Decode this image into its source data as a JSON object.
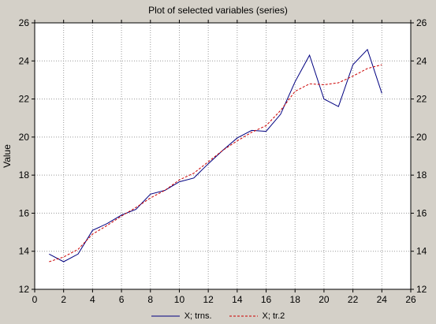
{
  "chart_data": {
    "type": "line",
    "title": "Plot of selected variables (series)",
    "xlabel": "",
    "ylabel": "Value",
    "xlim": [
      0,
      26
    ],
    "ylim": [
      12,
      26
    ],
    "x_ticks": [
      "0",
      "2",
      "4",
      "6",
      "8",
      "10",
      "12",
      "14",
      "16",
      "18",
      "20",
      "22",
      "24",
      "26"
    ],
    "y_ticks": [
      "12",
      "14",
      "16",
      "18",
      "20",
      "22",
      "24",
      "26"
    ],
    "grid": true,
    "legend_position": "bottom",
    "series": [
      {
        "name": "X; trns.",
        "color": "#000080",
        "style": "solid",
        "x": [
          1,
          2,
          3,
          4,
          5,
          6,
          7,
          8,
          9,
          10,
          11,
          12,
          13,
          14,
          15,
          16,
          17,
          18,
          19,
          20,
          21,
          22,
          23,
          24
        ],
        "values": [
          13.85,
          13.45,
          13.85,
          15.1,
          15.45,
          15.9,
          16.2,
          17.0,
          17.2,
          17.65,
          17.85,
          18.6,
          19.3,
          19.95,
          20.35,
          20.3,
          21.2,
          22.9,
          24.3,
          22.0,
          21.6,
          23.8,
          24.6,
          22.3
        ]
      },
      {
        "name": "X; tr.2",
        "color": "#cc0000",
        "style": "dashed",
        "x": [
          1,
          2,
          3,
          4,
          5,
          6,
          7,
          8,
          9,
          10,
          11,
          12,
          13,
          14,
          15,
          16,
          17,
          18,
          19,
          20,
          21,
          22,
          23,
          24
        ],
        "values": [
          13.45,
          13.7,
          14.1,
          14.9,
          15.35,
          15.85,
          16.3,
          16.8,
          17.2,
          17.75,
          18.1,
          18.7,
          19.3,
          19.8,
          20.25,
          20.6,
          21.4,
          22.4,
          22.8,
          22.75,
          22.85,
          23.2,
          23.6,
          23.8
        ]
      }
    ]
  }
}
